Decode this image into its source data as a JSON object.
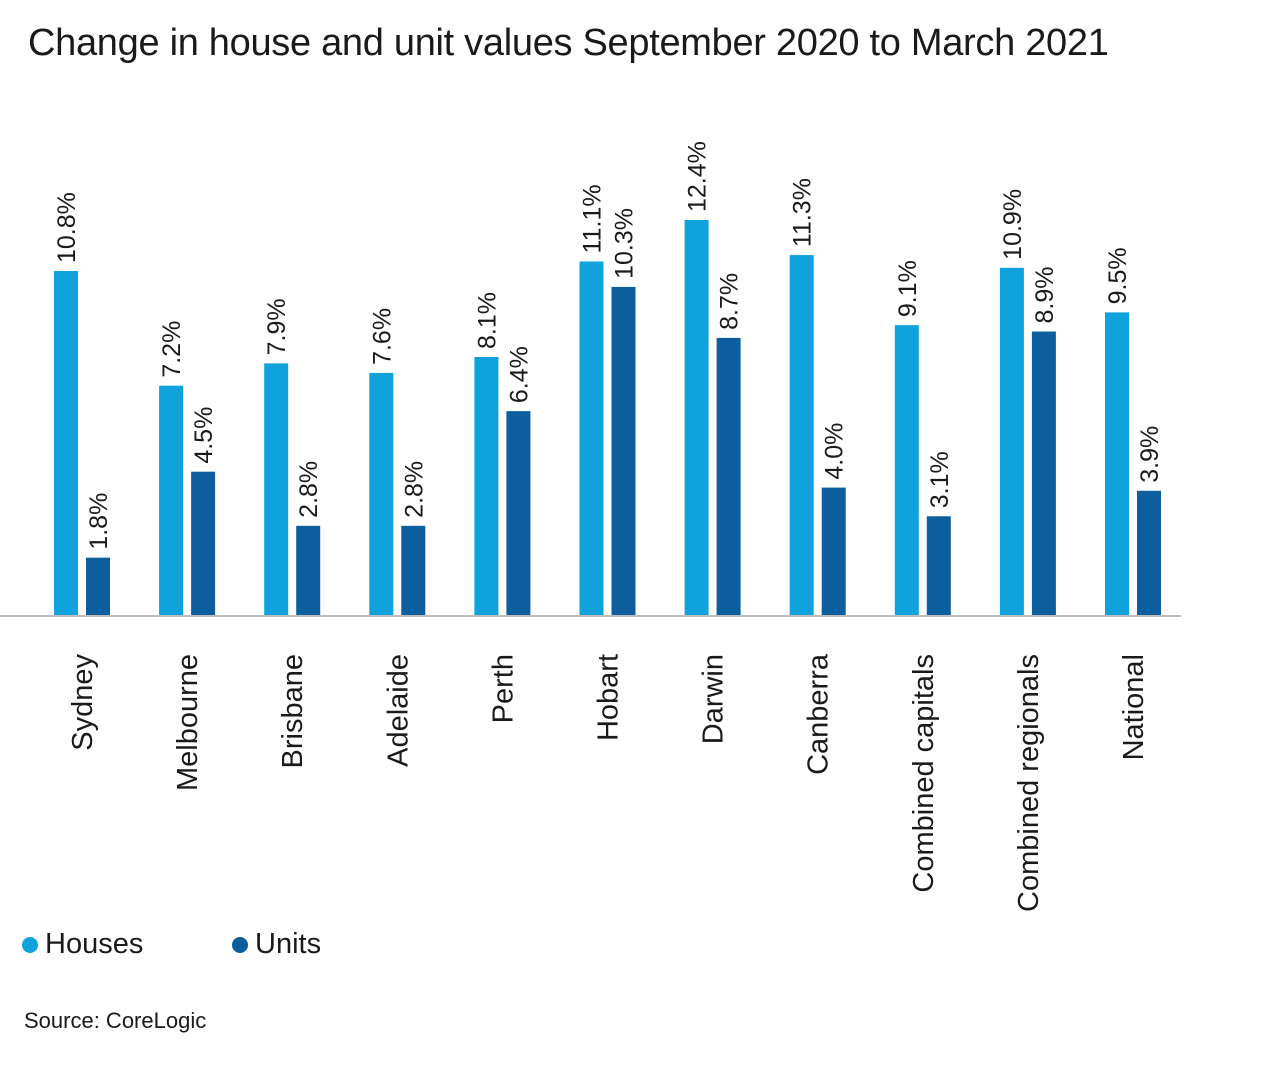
{
  "colors": {
    "houses": "#0fa2dd",
    "units": "#0c5f9c",
    "axis": "#bdbdbd"
  },
  "legend": {
    "houses_label": "Houses",
    "units_label": "Units"
  },
  "source": "Source: CoreLogic",
  "chart_data": {
    "type": "bar",
    "title": "Change in house and unit values September 2020 to March 2021",
    "categories": [
      "Sydney",
      "Melbourne",
      "Brisbane",
      "Adelaide",
      "Perth",
      "Hobart",
      "Darwin",
      "Canberra",
      "Combined capitals",
      "Combined regionals",
      "National"
    ],
    "series": [
      {
        "name": "Houses",
        "values": [
          10.8,
          7.2,
          7.9,
          7.6,
          8.1,
          11.1,
          12.4,
          11.3,
          9.1,
          10.9,
          9.5
        ],
        "labels": [
          "10.8%",
          "7.2%",
          "7.9%",
          "7.6%",
          "8.1%",
          "11.1%",
          "12.4%",
          "11.3%",
          "9.1%",
          "10.9%",
          "9.5%"
        ]
      },
      {
        "name": "Units",
        "values": [
          1.8,
          4.5,
          2.8,
          2.8,
          6.4,
          10.3,
          8.7,
          4.0,
          3.1,
          8.9,
          3.9
        ],
        "labels": [
          "1.8%",
          "4.5%",
          "2.8%",
          "2.8%",
          "6.4%",
          "10.3%",
          "8.7%",
          "4.0%",
          "3.1%",
          "8.9%",
          "3.9%"
        ]
      }
    ],
    "ylim": [
      0,
      14
    ],
    "grid": false,
    "legend_position": "bottom-left"
  }
}
